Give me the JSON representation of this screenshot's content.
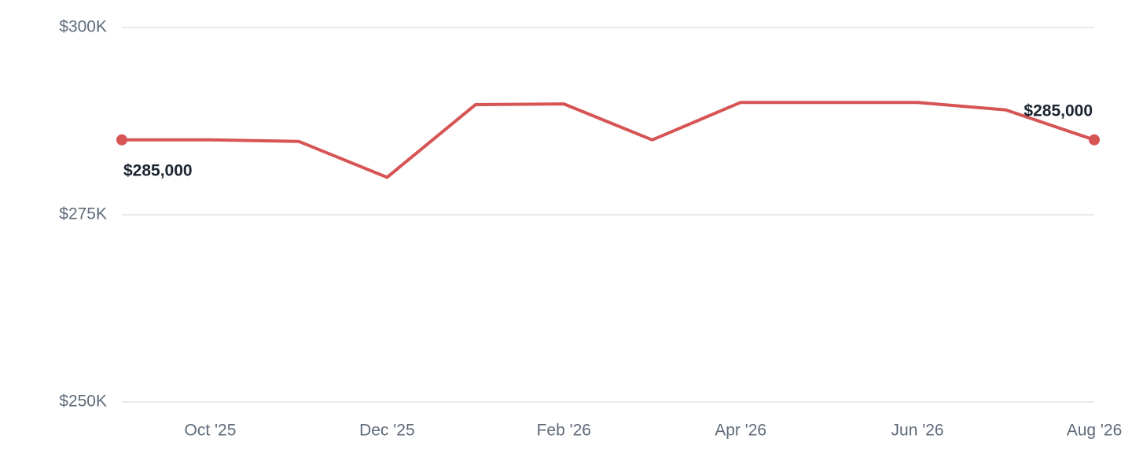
{
  "chart_data": {
    "type": "line",
    "categories": [
      null,
      "Oct '25",
      null,
      "Dec '25",
      null,
      "Feb '26",
      null,
      "Apr '26",
      null,
      "Jun '26",
      null,
      "Aug '26"
    ],
    "series": [
      {
        "color": "#d65454",
        "values": [
          285000,
          285000,
          284800,
          280000,
          289700,
          289800,
          285000,
          290000,
          290000,
          290000,
          289000,
          285000
        ],
        "value_labels": [
          "$285,000",
          null,
          null,
          null,
          null,
          null,
          null,
          null,
          null,
          null,
          null,
          "$285,000"
        ]
      }
    ],
    "ylim": [
      250000,
      300000
    ],
    "yticks": [
      {
        "value": 250000,
        "label": "$250K"
      },
      {
        "value": 275000,
        "label": "$275K"
      },
      {
        "value": 300000,
        "label": "$300K"
      }
    ],
    "grid": true
  }
}
